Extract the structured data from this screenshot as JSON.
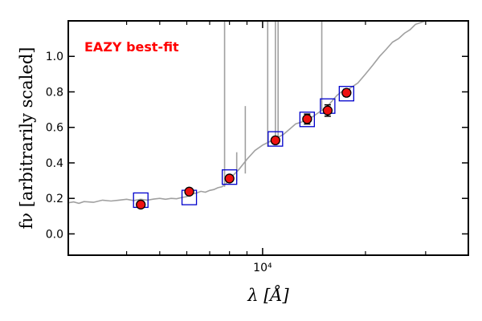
{
  "chart_data": {
    "type": "scatter",
    "annotation": "EAZY best-fit",
    "annotation_color": "#ff0000",
    "xlabel": "λ [Å]",
    "ylabel": "fν [arbitrarily scaled]",
    "x_scale": "log",
    "xlim": [
      2700,
      40000
    ],
    "ylim": [
      -0.12,
      1.2
    ],
    "x_tick_labels": [
      {
        "value": 10000,
        "label": "10⁴"
      }
    ],
    "x_minor_ticks": [
      4000,
      5000,
      6000,
      7000,
      8000,
      9000,
      20000,
      30000,
      40000
    ],
    "y_ticks": [
      0.0,
      0.2,
      0.4,
      0.6,
      0.8,
      1.0
    ],
    "y_tick_labels": [
      "0.0",
      "0.2",
      "0.4",
      "0.6",
      "0.8",
      "1.0"
    ],
    "grid": false,
    "colors": {
      "spectrum": "#a0a0a0",
      "model": "#0000cc",
      "observed_fill": "#ee1111",
      "observed_edge": "#000000"
    },
    "series": [
      {
        "name": "",
        "kind": "observed",
        "x": [
          4400,
          6100,
          8000,
          10900,
          13500,
          15500,
          17600
        ],
        "y": [
          0.165,
          0.238,
          0.312,
          0.527,
          0.647,
          0.695,
          0.795
        ],
        "yerr": [
          0.012,
          0.012,
          0.014,
          0.016,
          0.028,
          0.032,
          0.02
        ]
      },
      {
        "name": "",
        "kind": "model",
        "x": [
          4400,
          6100,
          8000,
          10900,
          13500,
          15500,
          17600
        ],
        "y": [
          0.19,
          0.205,
          0.32,
          0.535,
          0.645,
          0.72,
          0.79
        ]
      },
      {
        "name": "",
        "kind": "spectrum",
        "x": [
          2700,
          2800,
          2900,
          3000,
          3200,
          3400,
          3600,
          3800,
          4000,
          4200,
          4400,
          4600,
          4800,
          5000,
          5200,
          5400,
          5600,
          5800,
          6000,
          6200,
          6400,
          6600,
          6800,
          7000,
          7200,
          7400,
          7600,
          7800,
          8000,
          8500,
          9000,
          9500,
          10000,
          10500,
          11000,
          11500,
          12000,
          12500,
          13000,
          13500,
          14000,
          14500,
          15000,
          15500,
          16000,
          16500,
          17000,
          17500,
          18000,
          19000,
          20000,
          21000,
          22000,
          23000,
          24000,
          25000,
          26000,
          27000,
          28000,
          30000,
          32000
        ],
        "y": [
          0.175,
          0.18,
          0.172,
          0.182,
          0.178,
          0.19,
          0.185,
          0.19,
          0.195,
          0.188,
          0.195,
          0.19,
          0.196,
          0.2,
          0.195,
          0.2,
          0.198,
          0.205,
          0.21,
          0.225,
          0.23,
          0.24,
          0.235,
          0.245,
          0.25,
          0.26,
          0.265,
          0.28,
          0.31,
          0.36,
          0.42,
          0.47,
          0.5,
          0.52,
          0.54,
          0.56,
          0.59,
          0.62,
          0.63,
          0.65,
          0.66,
          0.68,
          0.7,
          0.72,
          0.75,
          0.78,
          0.8,
          0.8,
          0.82,
          0.85,
          0.9,
          0.95,
          1.0,
          1.04,
          1.08,
          1.1,
          1.13,
          1.15,
          1.18,
          1.2,
          1.22
        ]
      },
      {
        "name": "",
        "kind": "emission_lines",
        "x": [
          7740,
          8400,
          8900,
          10350,
          10900,
          11100,
          14900
        ],
        "y_base": [
          0.265,
          0.3,
          0.34,
          0.49,
          0.53,
          0.54,
          0.7
        ],
        "y_peak": [
          1.25,
          0.46,
          0.72,
          1.25,
          1.25,
          1.25,
          1.25
        ]
      }
    ]
  }
}
